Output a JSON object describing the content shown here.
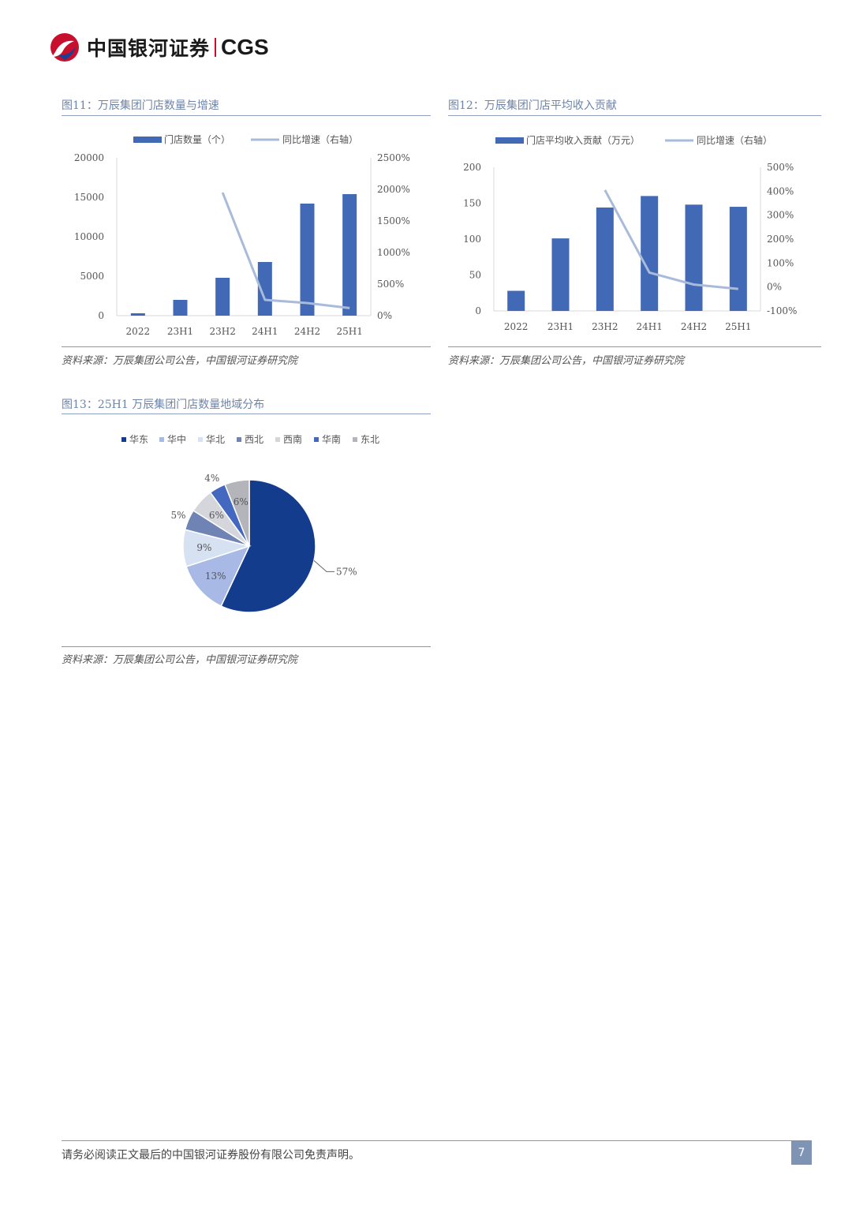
{
  "header": {
    "logo_text_cn": "中国银河证券",
    "logo_text_en": "CGS"
  },
  "figures": {
    "fig11": {
      "title": "图11：万辰集团门店数量与增速",
      "source": "资料来源：万辰集团公司公告，中国银河证券研究院"
    },
    "fig12": {
      "title": "图12：万辰集团门店平均收入贡献",
      "source": "资料来源：万辰集团公司公告，中国银河证券研究院"
    },
    "fig13": {
      "title": "图13：25H1 万辰集团门店数量地域分布",
      "source": "资料来源：万辰集团公司公告，中国银河证券研究院"
    }
  },
  "footer": {
    "disclaimer": "请务必阅读正文最后的中国银河证券股份有限公司免责声明。",
    "page_number": "7"
  },
  "colors": {
    "bar": "#4169b6",
    "line": "#a9bbdb",
    "pie_dark": "#143c8c"
  },
  "chart_data": [
    {
      "type": "bar",
      "categories": [
        "2022",
        "23H1",
        "23H2",
        "24H1",
        "24H2",
        "25H1"
      ],
      "series": [
        {
          "name": "门店数量（个）",
          "axis": "left",
          "type": "bar",
          "values": [
            300,
            2000,
            4800,
            6800,
            14200,
            15400
          ]
        },
        {
          "name": "同比增速（右轴）",
          "axis": "right",
          "type": "line",
          "values": [
            null,
            null,
            1950,
            250,
            200,
            120
          ]
        }
      ],
      "left_axis": {
        "ticks": [
          "0",
          "5000",
          "10000",
          "15000",
          "20000"
        ],
        "ylim": [
          0,
          20000
        ]
      },
      "right_axis": {
        "ticks": [
          "0%",
          "500%",
          "1000%",
          "1500%",
          "2000%",
          "2500%"
        ],
        "ylim": [
          0,
          2500
        ]
      },
      "legend": "top"
    },
    {
      "type": "bar",
      "categories": [
        "2022",
        "23H1",
        "23H2",
        "24H1",
        "24H2",
        "25H1"
      ],
      "series": [
        {
          "name": "门店平均收入贡献（万元）",
          "axis": "left",
          "type": "bar",
          "values": [
            28,
            101,
            144,
            160,
            148,
            145
          ]
        },
        {
          "name": "同比增速（右轴）",
          "axis": "right",
          "type": "line",
          "values": [
            null,
            null,
            405,
            60,
            10,
            -8
          ]
        }
      ],
      "left_axis": {
        "ticks": [
          "0",
          "50",
          "100",
          "150",
          "200"
        ],
        "ylim": [
          0,
          200
        ]
      },
      "right_axis": {
        "ticks": [
          "-100%",
          "0%",
          "100%",
          "200%",
          "300%",
          "400%",
          "500%"
        ],
        "ylim": [
          -100,
          500
        ]
      },
      "legend": "top"
    },
    {
      "type": "pie",
      "labels": [
        "华东",
        "华中",
        "华北",
        "西北",
        "西南",
        "华南",
        "东北"
      ],
      "values": [
        57,
        13,
        9,
        5,
        6,
        4,
        6
      ],
      "value_labels": [
        "57%",
        "13%",
        "9%",
        "5%",
        "6%",
        "4%",
        "6%"
      ],
      "colors": [
        "#143c8c",
        "#a7b9e4",
        "#d6e1f2",
        "#6f84b4",
        "#d4d6dc",
        "#4468c0",
        "#b3b5bb"
      ],
      "legend": "top"
    }
  ]
}
